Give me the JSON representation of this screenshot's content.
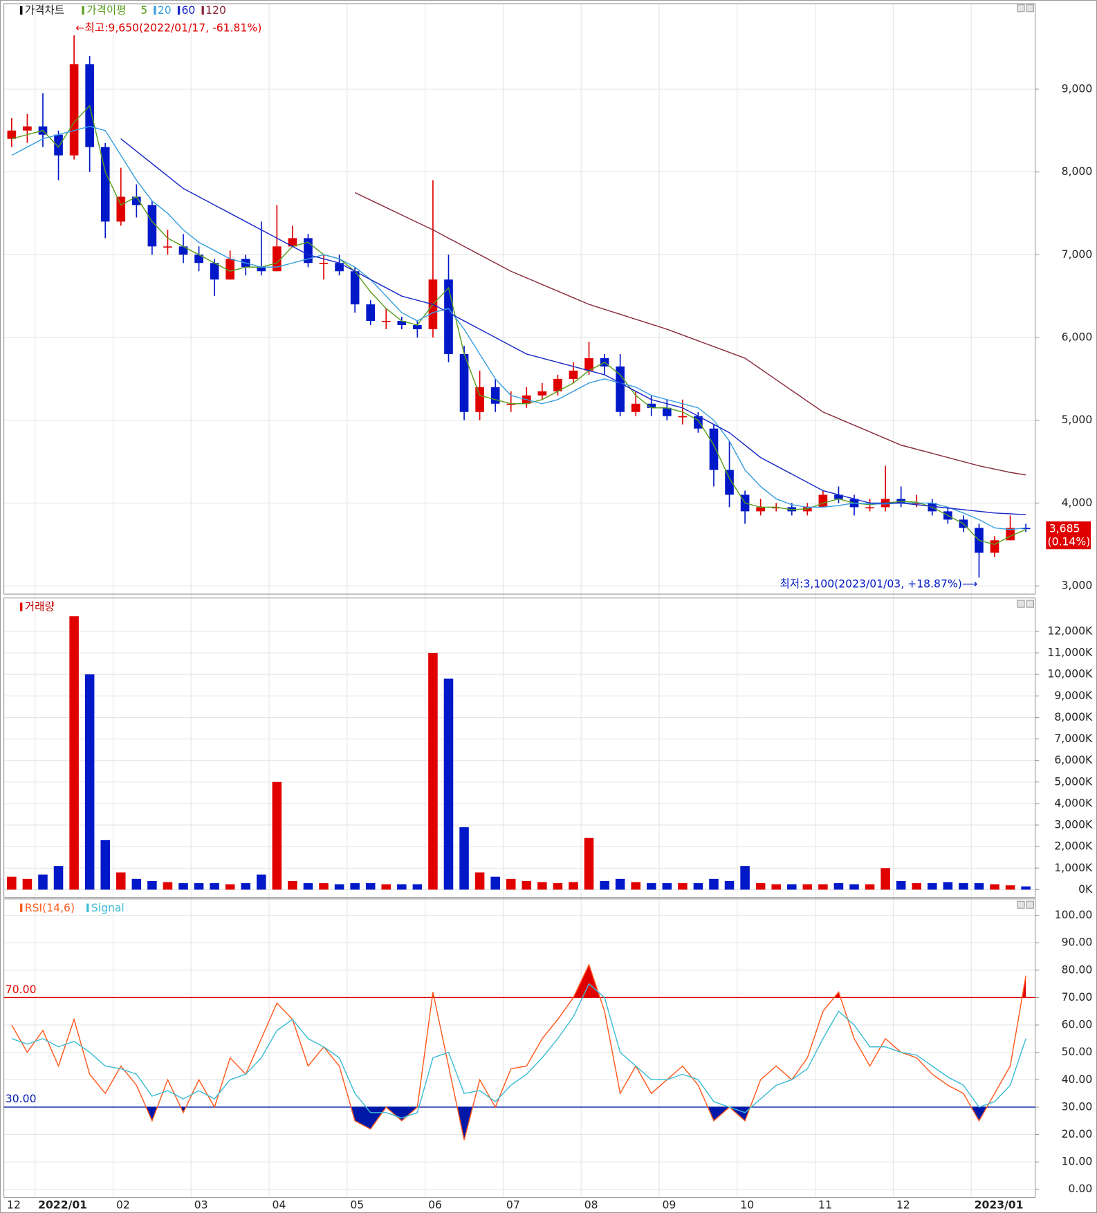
{
  "chart_data": [
    {
      "type": "candlestick",
      "title": "가격차트",
      "ma_title": "가격이평",
      "open": [
        8400,
        8500,
        8550,
        8450,
        8200,
        9300,
        8300,
        7400,
        7700,
        7600,
        7100,
        7100,
        7000,
        6900,
        6700,
        6950,
        6850,
        6800,
        7100,
        7200,
        6900,
        6900,
        6800,
        6400,
        6200,
        6200,
        6150,
        6100,
        6700,
        5800,
        5100,
        5400,
        5200,
        5200,
        5300,
        5350,
        5500,
        5600,
        5750,
        5650,
        5100,
        5200,
        5150,
        5050,
        5050,
        4900,
        4400,
        4100,
        3900,
        3950,
        3950,
        3900,
        3950,
        4100,
        4050,
        3950,
        3950,
        4050,
        4000,
        4000,
        3900,
        3800,
        3700,
        3400,
        3550,
        3700
      ],
      "high": [
        8650,
        8700,
        8950,
        8500,
        9650,
        9400,
        8350,
        8050,
        7850,
        7650,
        7300,
        7250,
        7100,
        6950,
        7050,
        7000,
        7400,
        7600,
        7350,
        7250,
        7000,
        7000,
        6850,
        6450,
        6350,
        6250,
        6200,
        7900,
        7000,
        5900,
        5600,
        5500,
        5350,
        5400,
        5450,
        5550,
        5700,
        5950,
        5800,
        5800,
        5350,
        5300,
        5250,
        5250,
        5100,
        4950,
        4750,
        4150,
        4050,
        4000,
        4000,
        4000,
        4150,
        4200,
        4100,
        4050,
        4450,
        4200,
        4100,
        4050,
        3950,
        3850,
        3750,
        3600,
        3850,
        3750
      ],
      "low": [
        8300,
        8350,
        8300,
        7900,
        8150,
        8000,
        7200,
        7350,
        7450,
        7000,
        7000,
        6900,
        6800,
        6500,
        6700,
        6750,
        6750,
        6800,
        7100,
        6850,
        6700,
        6750,
        6300,
        6150,
        6100,
        6100,
        6000,
        6000,
        5700,
        5000,
        5000,
        5100,
        5100,
        5150,
        5250,
        5300,
        5450,
        5550,
        5550,
        5050,
        5050,
        5050,
        5000,
        4950,
        4850,
        4200,
        3950,
        3750,
        3850,
        3900,
        3850,
        3850,
        3950,
        4000,
        3850,
        3900,
        3900,
        3950,
        3950,
        3850,
        3750,
        3650,
        3100,
        3350,
        3550,
        3650
      ],
      "close": [
        8500,
        8550,
        8450,
        8200,
        9300,
        8300,
        7400,
        7700,
        7600,
        7100,
        7100,
        7000,
        6900,
        6700,
        6950,
        6850,
        6800,
        7100,
        7200,
        6900,
        6900,
        6800,
        6400,
        6200,
        6200,
        6150,
        6100,
        6700,
        5800,
        5100,
        5400,
        5200,
        5200,
        5300,
        5350,
        5500,
        5600,
        5750,
        5650,
        5100,
        5200,
        5150,
        5050,
        5050,
        4900,
        4400,
        4100,
        3900,
        3950,
        3950,
        3900,
        3950,
        4100,
        4050,
        3950,
        3950,
        4050,
        4000,
        4000,
        3900,
        3800,
        3700,
        3400,
        3550,
        3700,
        3685
      ],
      "up_color": "#e00000",
      "down_color": "#0018c8",
      "series": [
        {
          "name": "5",
          "color": "#5a9e1e",
          "values": [
            8400,
            8450,
            8500,
            8300,
            8600,
            8800,
            8000,
            7600,
            7700,
            7400,
            7200,
            7100,
            7000,
            6900,
            6800,
            6850,
            6850,
            6900,
            7100,
            7150,
            7000,
            6950,
            6800,
            6550,
            6350,
            6200,
            6150,
            6400,
            6600,
            5800,
            5300,
            5250,
            5200,
            5200,
            5250,
            5350,
            5450,
            5600,
            5700,
            5550,
            5300,
            5150,
            5150,
            5100,
            5000,
            4700,
            4300,
            4000,
            3950,
            3950,
            3920,
            3930,
            4000,
            4050,
            4000,
            3980,
            4000,
            4020,
            4010,
            3950,
            3850,
            3750,
            3550,
            3500,
            3600,
            3680
          ]
        },
        {
          "name": "20",
          "color": "#3a9ee0",
          "values": [
            8200,
            8300,
            8400,
            8450,
            8500,
            8550,
            8500,
            8200,
            7900,
            7650,
            7500,
            7300,
            7150,
            7050,
            6950,
            6900,
            6850,
            6850,
            6900,
            6950,
            7000,
            6950,
            6850,
            6700,
            6500,
            6300,
            6200,
            6300,
            6350,
            6100,
            5800,
            5500,
            5300,
            5250,
            5200,
            5250,
            5350,
            5450,
            5500,
            5450,
            5400,
            5300,
            5250,
            5200,
            5150,
            5000,
            4750,
            4400,
            4200,
            4050,
            3980,
            3950,
            3950,
            3970,
            4000,
            3990,
            3990,
            4000,
            4000,
            4000,
            3950,
            3880,
            3800,
            3700,
            3680,
            3700
          ]
        },
        {
          "name": "60",
          "color": "#1a28c8",
          "values": [
            null,
            null,
            null,
            null,
            null,
            null,
            null,
            8400,
            8250,
            8100,
            7950,
            7800,
            7700,
            7600,
            7500,
            7400,
            7300,
            7200,
            7100,
            7000,
            6950,
            6900,
            6800,
            6700,
            6600,
            6500,
            6450,
            6400,
            6300,
            6200,
            6100,
            6000,
            5900,
            5800,
            5750,
            5700,
            5650,
            5600,
            5550,
            5450,
            5350,
            5250,
            5200,
            5150,
            5050,
            4950,
            4850,
            4700,
            4550,
            4450,
            4350,
            4250,
            4150,
            4100,
            4050,
            4000,
            4000,
            4000,
            3980,
            3960,
            3940,
            3920,
            3900,
            3880,
            3870,
            3860
          ]
        },
        {
          "name": "120",
          "color": "#8a2c3c",
          "values": [
            null,
            null,
            null,
            null,
            null,
            null,
            null,
            null,
            null,
            null,
            null,
            null,
            null,
            null,
            null,
            null,
            null,
            null,
            null,
            null,
            null,
            null,
            7750,
            7660,
            7570,
            7480,
            7390,
            7300,
            7200,
            7100,
            7000,
            6900,
            6800,
            6720,
            6640,
            6560,
            6480,
            6400,
            6340,
            6280,
            6220,
            6160,
            6100,
            6030,
            5960,
            5890,
            5820,
            5750,
            5620,
            5490,
            5360,
            5230,
            5100,
            5020,
            4940,
            4860,
            4780,
            4700,
            4650,
            4600,
            4550,
            4500,
            4450,
            4410,
            4370,
            4340
          ]
        }
      ],
      "ylim": [
        2900,
        10030
      ],
      "yticks": [
        {
          "value": 3000,
          "label": "3,000"
        },
        {
          "value": 4000,
          "label": "4,000"
        },
        {
          "value": 5000,
          "label": "5,000"
        },
        {
          "value": 6000,
          "label": "6,000"
        },
        {
          "value": 7000,
          "label": "7,000"
        },
        {
          "value": 8000,
          "label": "8,000"
        },
        {
          "value": 9000,
          "label": "9,000"
        }
      ],
      "annotations": [
        {
          "text": "←최고:9,650(2022/01/17, -61.81%)",
          "value": 9650,
          "color": "#e00000"
        },
        {
          "text": "최저:3,100(2023/01/03, +18.87%)⟶",
          "value": 3100,
          "color": "#0018c8"
        }
      ],
      "last_price": {
        "value": 3685,
        "label": "3,685"
      },
      "last_change": "(0.14%)"
    },
    {
      "type": "bar",
      "title": "거래량",
      "values": [
        600,
        500,
        700,
        1100,
        12700,
        10000,
        2300,
        800,
        500,
        400,
        350,
        300,
        300,
        300,
        250,
        300,
        700,
        5000,
        400,
        300,
        300,
        250,
        300,
        300,
        250,
        250,
        250,
        11000,
        9800,
        2900,
        800,
        600,
        500,
        400,
        350,
        300,
        350,
        2400,
        400,
        500,
        350,
        300,
        300,
        300,
        300,
        500,
        400,
        1100,
        300,
        250,
        250,
        250,
        250,
        300,
        250,
        250,
        1000,
        400,
        300,
        300,
        350,
        300,
        300,
        250,
        200,
        150
      ],
      "ylim": [
        -360,
        13550
      ],
      "yticks": [
        {
          "value": 0,
          "label": "0K"
        },
        {
          "value": 1000,
          "label": "1,000K"
        },
        {
          "value": 2000,
          "label": "2,000K"
        },
        {
          "value": 3000,
          "label": "3,000K"
        },
        {
          "value": 4000,
          "label": "4,000K"
        },
        {
          "value": 5000,
          "label": "5,000K"
        },
        {
          "value": 6000,
          "label": "6,000K"
        },
        {
          "value": 7000,
          "label": "7,000K"
        },
        {
          "value": 8000,
          "label": "8,000K"
        },
        {
          "value": 9000,
          "label": "9,000K"
        },
        {
          "value": 10000,
          "label": "10,000K"
        },
        {
          "value": 11000,
          "label": "11,000K"
        },
        {
          "value": 12000,
          "label": "12,000K"
        }
      ]
    },
    {
      "type": "line",
      "categories": [
        "12",
        null,
        "2022/01",
        null,
        null,
        null,
        null,
        "02",
        null,
        null,
        null,
        null,
        "03",
        null,
        null,
        null,
        null,
        "04",
        null,
        null,
        null,
        null,
        "05",
        null,
        null,
        null,
        null,
        "06",
        null,
        null,
        null,
        null,
        "07",
        null,
        null,
        null,
        null,
        "08",
        null,
        null,
        null,
        null,
        "09",
        null,
        null,
        null,
        null,
        "10",
        null,
        null,
        null,
        null,
        "11",
        null,
        null,
        null,
        null,
        "12",
        null,
        null,
        null,
        null,
        "2023/01",
        null,
        null,
        null
      ],
      "series": [
        {
          "name": "RSI(14,6)",
          "color": "#ff5a1e",
          "values": [
            60,
            50,
            58,
            45,
            62,
            42,
            35,
            45,
            38,
            25,
            40,
            28,
            40,
            30,
            48,
            42,
            55,
            68,
            62,
            45,
            52,
            45,
            25,
            22,
            30,
            25,
            30,
            72,
            45,
            18,
            40,
            30,
            44,
            45,
            55,
            62,
            70,
            82,
            65,
            35,
            45,
            35,
            40,
            45,
            38,
            25,
            30,
            25,
            40,
            45,
            40,
            48,
            65,
            72,
            55,
            45,
            55,
            50,
            48,
            42,
            38,
            35,
            25,
            35,
            45,
            78
          ]
        },
        {
          "name": "Signal",
          "color": "#3cbcd4",
          "values": [
            55,
            53,
            55,
            52,
            54,
            50,
            45,
            44,
            42,
            34,
            36,
            33,
            36,
            33,
            40,
            42,
            48,
            58,
            62,
            55,
            52,
            48,
            35,
            28,
            28,
            26,
            28,
            48,
            50,
            35,
            36,
            32,
            38,
            42,
            48,
            55,
            63,
            75,
            70,
            50,
            45,
            40,
            40,
            42,
            40,
            32,
            30,
            28,
            33,
            38,
            40,
            44,
            55,
            65,
            60,
            52,
            52,
            50,
            49,
            45,
            41,
            38,
            30,
            32,
            38,
            55
          ]
        }
      ],
      "levels": [
        {
          "value": 70,
          "label": "70.00",
          "color": "#e00000"
        },
        {
          "value": 30,
          "label": "30.00",
          "color": "#0018a8"
        }
      ],
      "ylim": [
        -3,
        106
      ],
      "yticks": [
        {
          "value": 0,
          "label": "0.00"
        },
        {
          "value": 10,
          "label": "10.00"
        },
        {
          "value": 20,
          "label": "20.00"
        },
        {
          "value": 30,
          "label": "30.00"
        },
        {
          "value": 40,
          "label": "40.00"
        },
        {
          "value": 50,
          "label": "50.00"
        },
        {
          "value": 60,
          "label": "60.00"
        },
        {
          "value": 70,
          "label": "70.00"
        },
        {
          "value": 80,
          "label": "80.00"
        },
        {
          "value": 90,
          "label": "90.00"
        },
        {
          "value": 100,
          "label": "100.00"
        }
      ]
    }
  ]
}
